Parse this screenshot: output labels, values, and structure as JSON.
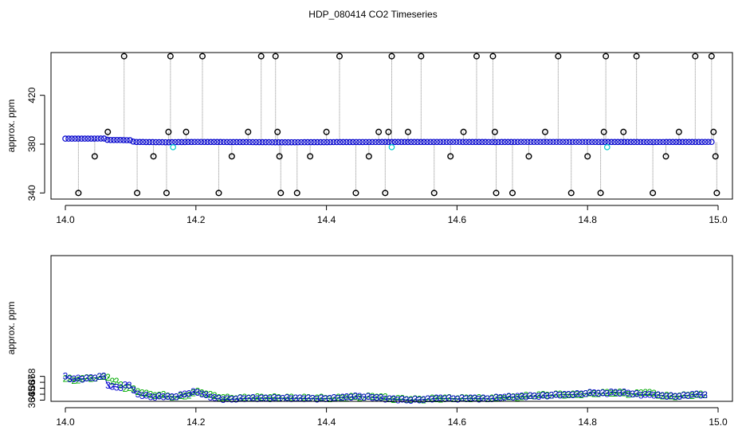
{
  "figure": {
    "title": "HDP_080414  CO2 Timeseries"
  },
  "chart_data": [
    {
      "type": "scatter",
      "title": "",
      "xlabel": "",
      "ylabel": "approx. ppm",
      "xlim": [
        14.0,
        15.0
      ],
      "ylim": [
        335,
        455
      ],
      "x_ticks": [
        14.0,
        14.2,
        14.4,
        14.6,
        14.8,
        15.0
      ],
      "x_tick_labels": [
        "14.0",
        "14.2",
        "14.4",
        "14.6",
        "14.8",
        "15.0"
      ],
      "y_ticks": [
        340,
        380,
        420
      ],
      "y_tick_labels": [
        "340",
        "380",
        "420"
      ],
      "grid": false,
      "legend": "none",
      "colors": {
        "series1": "#0000cc",
        "series2": "#00cccc",
        "outliers": "#000000",
        "drop_lines": "#888888"
      },
      "baseline": [
        [
          14.0,
          384.5
        ],
        [
          14.03,
          384.5
        ],
        [
          14.06,
          384.6
        ],
        [
          14.065,
          383.4
        ],
        [
          14.08,
          383.4
        ],
        [
          14.1,
          383.2
        ],
        [
          14.105,
          381.8
        ],
        [
          14.16,
          381.5
        ],
        [
          14.165,
          381.6
        ],
        [
          14.2,
          381.8
        ],
        [
          14.3,
          381.6
        ],
        [
          14.33,
          381.5
        ],
        [
          14.45,
          381.7
        ],
        [
          14.6,
          381.8
        ],
        [
          14.66,
          381.7
        ],
        [
          14.7,
          381.8
        ],
        [
          14.8,
          381.8
        ],
        [
          14.9,
          381.7
        ],
        [
          14.99,
          381.8
        ]
      ],
      "cyan_points": [
        [
          14.165,
          377.5
        ],
        [
          14.5,
          377.5
        ],
        [
          14.83,
          377.5
        ]
      ],
      "outliers": [
        [
          14.02,
          340
        ],
        [
          14.045,
          370
        ],
        [
          14.065,
          390
        ],
        [
          14.09,
          452
        ],
        [
          14.11,
          340
        ],
        [
          14.135,
          370
        ],
        [
          14.155,
          340
        ],
        [
          14.158,
          390
        ],
        [
          14.161,
          452
        ],
        [
          14.185,
          390
        ],
        [
          14.21,
          452
        ],
        [
          14.235,
          340
        ],
        [
          14.255,
          370
        ],
        [
          14.28,
          390
        ],
        [
          14.3,
          452
        ],
        [
          14.322,
          452
        ],
        [
          14.325,
          390
        ],
        [
          14.328,
          370
        ],
        [
          14.33,
          340
        ],
        [
          14.355,
          340
        ],
        [
          14.375,
          370
        ],
        [
          14.4,
          390
        ],
        [
          14.42,
          452
        ],
        [
          14.445,
          340
        ],
        [
          14.465,
          370
        ],
        [
          14.48,
          390
        ],
        [
          14.49,
          340
        ],
        [
          14.495,
          390
        ],
        [
          14.5,
          452
        ],
        [
          14.525,
          390
        ],
        [
          14.545,
          452
        ],
        [
          14.565,
          340
        ],
        [
          14.59,
          370
        ],
        [
          14.61,
          390
        ],
        [
          14.63,
          452
        ],
        [
          14.655,
          452
        ],
        [
          14.658,
          390
        ],
        [
          14.66,
          340
        ],
        [
          14.685,
          340
        ],
        [
          14.71,
          370
        ],
        [
          14.735,
          390
        ],
        [
          14.755,
          452
        ],
        [
          14.775,
          340
        ],
        [
          14.8,
          370
        ],
        [
          14.82,
          340
        ],
        [
          14.825,
          390
        ],
        [
          14.828,
          452
        ],
        [
          14.855,
          390
        ],
        [
          14.875,
          452
        ],
        [
          14.9,
          340
        ],
        [
          14.92,
          370
        ],
        [
          14.94,
          390
        ],
        [
          14.965,
          452
        ],
        [
          14.99,
          452
        ],
        [
          14.993,
          390
        ],
        [
          14.996,
          370
        ],
        [
          14.998,
          340
        ]
      ]
    },
    {
      "type": "scatter",
      "title": "",
      "xlabel": "",
      "ylabel": "approx. ppm",
      "xlim": [
        14.0,
        15.0
      ],
      "ylim": [
        363.8,
        388.3
      ],
      "x_ticks": [
        14.0,
        14.2,
        14.4,
        14.6,
        14.8,
        15.0
      ],
      "x_tick_labels": [
        "14.0",
        "14.2",
        "14.4",
        "14.6",
        "14.8",
        "15.0"
      ],
      "y_ticks": [
        364,
        365,
        366,
        367,
        368
      ],
      "y_tick_labels": [
        "364",
        "365",
        "366",
        "367",
        "368"
      ],
      "grid": false,
      "legend": "none",
      "colors": {
        "series_3": "#0000cc",
        "series_2": "#00aa00"
      },
      "markers": {
        "series_3": "3",
        "series_2": "2"
      },
      "series_3": [
        [
          14.0,
          367.9
        ],
        [
          14.01,
          367.5
        ],
        [
          14.02,
          367.6
        ],
        [
          14.03,
          367.6
        ],
        [
          14.04,
          367.7
        ],
        [
          14.05,
          367.8
        ],
        [
          14.06,
          368.1
        ],
        [
          14.063,
          367.0
        ],
        [
          14.068,
          366.0
        ],
        [
          14.075,
          366.3
        ],
        [
          14.085,
          366.1
        ],
        [
          14.095,
          366.7
        ],
        [
          14.1,
          366.5
        ],
        [
          14.104,
          365.7
        ],
        [
          14.108,
          365.0
        ],
        [
          14.115,
          364.9
        ],
        [
          14.125,
          364.7
        ],
        [
          14.135,
          364.5
        ],
        [
          14.15,
          364.6
        ],
        [
          14.165,
          364.5
        ],
        [
          14.18,
          364.9
        ],
        [
          14.195,
          365.3
        ],
        [
          14.2,
          365.4
        ],
        [
          14.21,
          365.0
        ],
        [
          14.22,
          364.6
        ],
        [
          14.235,
          364.2
        ],
        [
          14.25,
          364.1
        ],
        [
          14.265,
          364.2
        ],
        [
          14.28,
          364.3
        ],
        [
          14.3,
          364.3
        ],
        [
          14.33,
          364.3
        ],
        [
          14.36,
          364.3
        ],
        [
          14.39,
          364.2
        ],
        [
          14.41,
          364.3
        ],
        [
          14.43,
          364.5
        ],
        [
          14.45,
          364.6
        ],
        [
          14.47,
          364.5
        ],
        [
          14.49,
          364.2
        ],
        [
          14.51,
          364.1
        ],
        [
          14.53,
          364.0
        ],
        [
          14.55,
          364.1
        ],
        [
          14.57,
          364.3
        ],
        [
          14.6,
          364.2
        ],
        [
          14.62,
          364.3
        ],
        [
          14.65,
          364.2
        ],
        [
          14.67,
          364.5
        ],
        [
          14.7,
          364.6
        ],
        [
          14.73,
          364.7
        ],
        [
          14.76,
          364.9
        ],
        [
          14.79,
          365.0
        ],
        [
          14.81,
          365.3
        ],
        [
          14.82,
          365.1
        ],
        [
          14.84,
          365.3
        ],
        [
          14.86,
          365.2
        ],
        [
          14.88,
          364.9
        ],
        [
          14.9,
          364.9
        ],
        [
          14.92,
          364.7
        ],
        [
          14.94,
          364.6
        ],
        [
          14.96,
          364.9
        ],
        [
          14.97,
          365.0
        ],
        [
          14.98,
          364.8
        ]
      ],
      "series_2": [
        [
          14.005,
          367.6
        ],
        [
          14.012,
          367.3
        ],
        [
          14.03,
          367.6
        ],
        [
          14.05,
          367.8
        ],
        [
          14.065,
          368.0
        ],
        [
          14.07,
          367.2
        ],
        [
          14.08,
          367.0
        ],
        [
          14.09,
          366.1
        ],
        [
          14.1,
          366.0
        ],
        [
          14.11,
          365.5
        ],
        [
          14.13,
          364.9
        ],
        [
          14.15,
          364.8
        ],
        [
          14.17,
          364.5
        ],
        [
          14.19,
          364.9
        ],
        [
          14.205,
          365.5
        ],
        [
          14.22,
          364.9
        ],
        [
          14.24,
          364.4
        ],
        [
          14.26,
          364.3
        ],
        [
          14.28,
          364.4
        ],
        [
          14.32,
          364.4
        ],
        [
          14.36,
          364.4
        ],
        [
          14.4,
          364.3
        ],
        [
          14.44,
          364.5
        ],
        [
          14.48,
          364.6
        ],
        [
          14.5,
          364.2
        ],
        [
          14.54,
          364.1
        ],
        [
          14.58,
          364.3
        ],
        [
          14.62,
          364.3
        ],
        [
          14.66,
          364.3
        ],
        [
          14.69,
          364.5
        ],
        [
          14.72,
          364.8
        ],
        [
          14.75,
          364.9
        ],
        [
          14.78,
          364.9
        ],
        [
          14.8,
          365.1
        ],
        [
          14.83,
          365.2
        ],
        [
          14.85,
          365.2
        ],
        [
          14.87,
          365.0
        ],
        [
          14.89,
          365.4
        ],
        [
          14.91,
          364.8
        ],
        [
          14.93,
          364.6
        ],
        [
          14.95,
          364.8
        ],
        [
          14.97,
          364.9
        ]
      ]
    }
  ]
}
